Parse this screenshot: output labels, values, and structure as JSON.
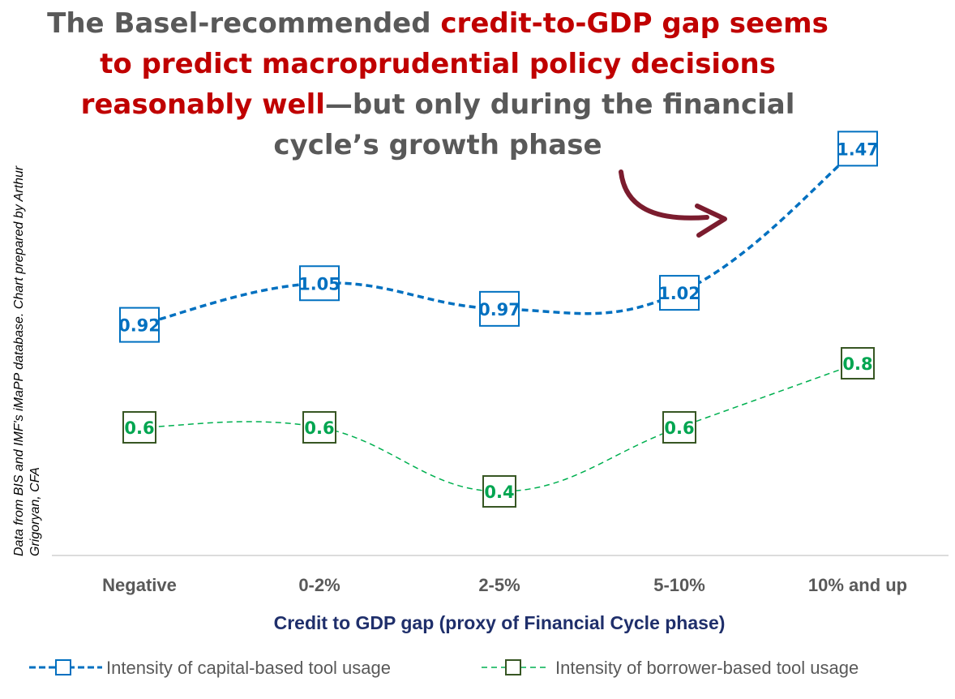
{
  "title": {
    "part1": "The Basel-recommended ",
    "part2": "credit-to-GDP gap seems to predict macroprudential policy decisions reasonably well",
    "part3": "—but only during the financial cycle’s growth phase"
  },
  "source_note": "Data from BIS and IMF's iMaPP database. Chart prepared by Arthur Grigoryan, CFA",
  "colors": {
    "title_gray": "#595959",
    "title_red": "#c00000",
    "capital": "#0070c0",
    "borrower_line": "#00b050",
    "borrower_box": "#375623",
    "borrower_text": "#00a550",
    "arrow": "#7b1c2e",
    "axis_title": "#1f2f6b"
  },
  "chart_data": {
    "type": "line",
    "categories": [
      "Negative",
      "0-2%",
      "2-5%",
      "5-10%",
      "10% and up"
    ],
    "xlabel": "Credit to GDP gap (proxy of Financial Cycle phase)",
    "ylabel": "",
    "ylim": [
      0.2,
      1.6
    ],
    "grid": false,
    "legend_position": "bottom",
    "series": [
      {
        "name": "Intensity of capital-based tool usage",
        "values": [
          0.92,
          1.05,
          0.97,
          1.02,
          1.47
        ],
        "labels": [
          "0.92",
          "1.05",
          "0.97",
          "1.02",
          "1.47"
        ],
        "style": "dashed-thick",
        "color": "#0070c0"
      },
      {
        "name": "Intensity of borrower-based tool usage",
        "values": [
          0.6,
          0.6,
          0.4,
          0.6,
          0.8
        ],
        "labels": [
          "0.6",
          "0.6",
          "0.4",
          "0.6",
          "0.8"
        ],
        "style": "dashed-thin",
        "color": "#00b050"
      }
    ]
  }
}
